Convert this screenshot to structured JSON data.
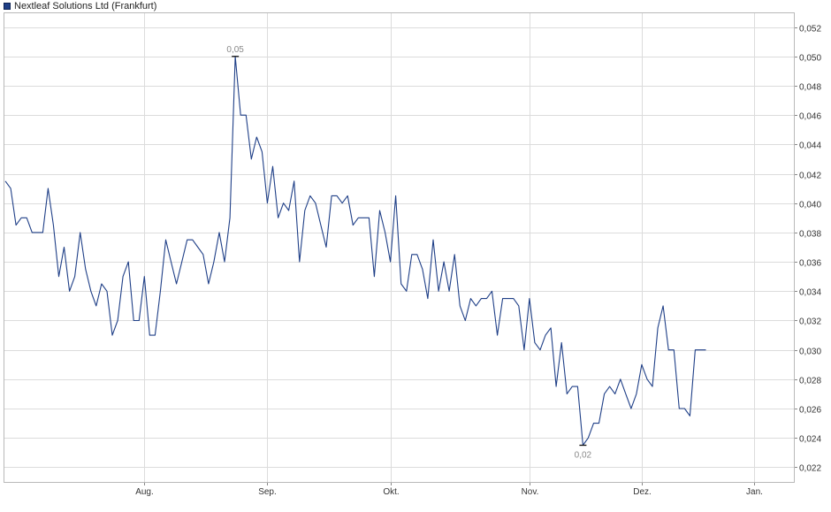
{
  "legend": {
    "label": "Nextleaf Solutions Ltd (Frankfurt)",
    "color": "#1f3f87"
  },
  "chart_data": {
    "type": "line",
    "title": "",
    "xlabel": "",
    "ylabel": "",
    "ylim": [
      0.021,
      0.053
    ],
    "grid": true,
    "legend_position": "top-left",
    "line_color": "#1f3f87",
    "y_ticks": [
      {
        "value": 0.022,
        "label": "0,022"
      },
      {
        "value": 0.024,
        "label": "0,024"
      },
      {
        "value": 0.026,
        "label": "0,026"
      },
      {
        "value": 0.028,
        "label": "0,028"
      },
      {
        "value": 0.03,
        "label": "0,030"
      },
      {
        "value": 0.032,
        "label": "0,032"
      },
      {
        "value": 0.034,
        "label": "0,034"
      },
      {
        "value": 0.036,
        "label": "0,036"
      },
      {
        "value": 0.038,
        "label": "0,038"
      },
      {
        "value": 0.04,
        "label": "0,040"
      },
      {
        "value": 0.042,
        "label": "0,042"
      },
      {
        "value": 0.044,
        "label": "0,044"
      },
      {
        "value": 0.046,
        "label": "0,046"
      },
      {
        "value": 0.048,
        "label": "0,048"
      },
      {
        "value": 0.05,
        "label": "0,050"
      },
      {
        "value": 0.052,
        "label": "0,052"
      }
    ],
    "x_ticks": [
      {
        "index": 26,
        "label": "Aug."
      },
      {
        "index": 49,
        "label": "Sep."
      },
      {
        "index": 72,
        "label": "Okt."
      },
      {
        "index": 98,
        "label": "Nov."
      },
      {
        "index": 119,
        "label": "Dez."
      },
      {
        "index": 140,
        "label": "Jan."
      }
    ],
    "series": [
      {
        "values": [
          0.0415,
          0.041,
          0.0385,
          0.039,
          0.039,
          0.038,
          0.038,
          0.038,
          0.041,
          0.0385,
          0.035,
          0.037,
          0.034,
          0.035,
          0.038,
          0.0355,
          0.034,
          0.033,
          0.0345,
          0.034,
          0.031,
          0.032,
          0.035,
          0.036,
          0.032,
          0.032,
          0.035,
          0.031,
          0.031,
          0.034,
          0.0375,
          0.036,
          0.0345,
          0.036,
          0.0375,
          0.0375,
          0.037,
          0.0365,
          0.0345,
          0.036,
          0.038,
          0.036,
          0.039,
          0.05,
          0.046,
          0.046,
          0.043,
          0.0445,
          0.0435,
          0.04,
          0.0425,
          0.039,
          0.04,
          0.0395,
          0.0415,
          0.036,
          0.0395,
          0.0405,
          0.04,
          0.0385,
          0.037,
          0.0405,
          0.0405,
          0.04,
          0.0405,
          0.0385,
          0.039,
          0.039,
          0.039,
          0.035,
          0.0395,
          0.038,
          0.036,
          0.0405,
          0.0345,
          0.034,
          0.0365,
          0.0365,
          0.0355,
          0.0335,
          0.0375,
          0.034,
          0.036,
          0.034,
          0.0365,
          0.033,
          0.032,
          0.0335,
          0.033,
          0.0335,
          0.0335,
          0.034,
          0.031,
          0.0335,
          0.0335,
          0.0335,
          0.033,
          0.03,
          0.0335,
          0.0305,
          0.03,
          0.031,
          0.0315,
          0.0275,
          0.0305,
          0.027,
          0.0275,
          0.0275,
          0.0235,
          0.024,
          0.025,
          0.025,
          0.027,
          0.0275,
          0.027,
          0.028,
          0.027,
          0.026,
          0.027,
          0.029,
          0.028,
          0.0275,
          0.0315,
          0.033,
          0.03,
          0.03,
          0.026,
          0.026,
          0.0255,
          0.03,
          0.03,
          0.03
        ]
      }
    ],
    "annotations": [
      {
        "index": 43,
        "value": 0.05,
        "label": "0,05",
        "position": "above"
      },
      {
        "index": 108,
        "value": 0.0235,
        "label": "0,02",
        "position": "below"
      }
    ]
  }
}
